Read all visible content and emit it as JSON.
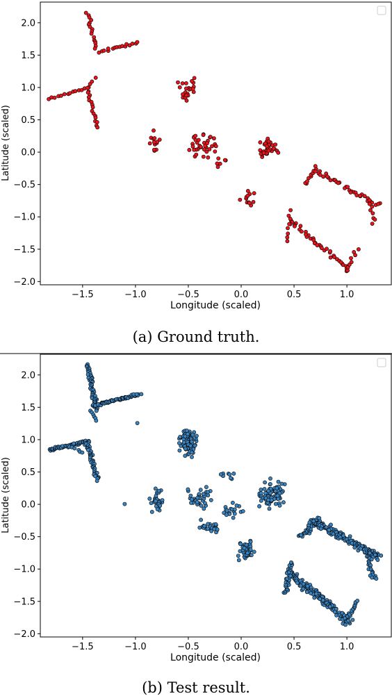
{
  "chart_data": [
    {
      "type": "scatter",
      "title": "",
      "xlabel": "Longitude (scaled)",
      "ylabel": "Latitude (scaled)",
      "xlim": [
        -1.9,
        1.42
      ],
      "ylim": [
        -2.05,
        2.32
      ],
      "xticks": [
        -1.5,
        -1.0,
        -0.5,
        0.0,
        0.5,
        1.0
      ],
      "xtick_labels": [
        "−1.5",
        "−1.0",
        "−0.5",
        "0.0",
        "0.5",
        "1.0"
      ],
      "yticks": [
        -2.0,
        -1.5,
        -1.0,
        -0.5,
        0.0,
        0.5,
        1.0,
        1.5,
        2.0
      ],
      "ytick_labels": [
        "−2.0",
        "−1.5",
        "−1.0",
        "−0.5",
        "0.0",
        "0.5",
        "1.0",
        "1.5",
        "2.0"
      ],
      "grid": false,
      "legend_placement": "upper-right",
      "point_color": "#e8141b",
      "point_edge": "#000000",
      "caption": "(a) Ground truth.",
      "clusters": [
        {
          "type": "line",
          "from": [
            -1.45,
            2.15
          ],
          "to": [
            -1.38,
            1.6
          ],
          "n": 16,
          "spread": 0.03
        },
        {
          "type": "line",
          "from": [
            -1.35,
            1.55
          ],
          "to": [
            -0.97,
            1.7
          ],
          "n": 16,
          "spread": 0.025
        },
        {
          "type": "line",
          "from": [
            -1.82,
            0.82
          ],
          "to": [
            -1.45,
            1.0
          ],
          "n": 14,
          "spread": 0.025
        },
        {
          "type": "line",
          "from": [
            -1.45,
            1.0
          ],
          "to": [
            -1.38,
            1.15
          ],
          "n": 4,
          "spread": 0.02
        },
        {
          "type": "line",
          "from": [
            -1.45,
            0.95
          ],
          "to": [
            -1.36,
            0.38
          ],
          "n": 16,
          "spread": 0.03
        },
        {
          "type": "blob",
          "center": [
            -0.52,
            0.98
          ],
          "r": [
            0.13,
            0.3
          ],
          "n": 22
        },
        {
          "type": "blob",
          "center": [
            -0.83,
            0.12
          ],
          "r": [
            0.09,
            0.25
          ],
          "n": 13
        },
        {
          "type": "blob",
          "center": [
            -0.38,
            0.1
          ],
          "r": [
            0.22,
            0.3
          ],
          "n": 36
        },
        {
          "type": "blob",
          "center": [
            -0.18,
            -0.12
          ],
          "r": [
            0.08,
            0.15
          ],
          "n": 6
        },
        {
          "type": "blob",
          "center": [
            0.06,
            -0.72
          ],
          "r": [
            0.1,
            0.18
          ],
          "n": 12
        },
        {
          "type": "blob",
          "center": [
            0.26,
            0.12
          ],
          "r": [
            0.18,
            0.28
          ],
          "n": 36
        },
        {
          "type": "line",
          "from": [
            0.6,
            -0.5
          ],
          "to": [
            0.7,
            -0.22
          ],
          "n": 10,
          "spread": 0.03
        },
        {
          "type": "line",
          "from": [
            0.7,
            -0.28
          ],
          "to": [
            1.3,
            -0.82
          ],
          "n": 34,
          "spread": 0.05
        },
        {
          "type": "line",
          "from": [
            1.22,
            -0.75
          ],
          "to": [
            1.25,
            -1.1
          ],
          "n": 8,
          "spread": 0.03
        },
        {
          "type": "line",
          "from": [
            0.45,
            -1.05
          ],
          "to": [
            1.02,
            -1.82
          ],
          "n": 38,
          "spread": 0.05
        },
        {
          "type": "line",
          "from": [
            0.43,
            -1.38
          ],
          "to": [
            0.47,
            -0.9
          ],
          "n": 8,
          "spread": 0.025
        },
        {
          "type": "line",
          "from": [
            1.0,
            -1.82
          ],
          "to": [
            1.1,
            -1.5
          ],
          "n": 8,
          "spread": 0.025
        }
      ]
    },
    {
      "type": "scatter",
      "title": "",
      "xlabel": "Longitude (scaled)",
      "ylabel": "Latitude (scaled)",
      "xlim": [
        -1.9,
        1.42
      ],
      "ylim": [
        -2.05,
        2.32
      ],
      "xticks": [
        -1.5,
        -1.0,
        -0.5,
        0.0,
        0.5,
        1.0
      ],
      "xtick_labels": [
        "−1.5",
        "−1.0",
        "−0.5",
        "0.0",
        "0.5",
        "1.0"
      ],
      "yticks": [
        -2.0,
        -1.5,
        -1.0,
        -0.5,
        0.0,
        0.5,
        1.0,
        1.5,
        2.0
      ],
      "ytick_labels": [
        "−2.0",
        "−1.5",
        "−1.0",
        "−0.5",
        "0.0",
        "0.5",
        "1.0",
        "1.5",
        "2.0"
      ],
      "grid": false,
      "legend_placement": "upper-right",
      "point_color": "#3b83be",
      "point_edge": "#000000",
      "caption": "(b) Test result.",
      "clusters": [
        {
          "type": "line",
          "from": [
            -1.45,
            2.15
          ],
          "to": [
            -1.37,
            1.45
          ],
          "n": 60,
          "spread": 0.03
        },
        {
          "type": "line",
          "from": [
            -1.4,
            1.52
          ],
          "to": [
            -0.97,
            1.7
          ],
          "n": 70,
          "spread": 0.03
        },
        {
          "type": "line",
          "from": [
            -1.42,
            1.45
          ],
          "to": [
            -1.37,
            1.3
          ],
          "n": 6,
          "spread": 0.02
        },
        {
          "type": "line",
          "from": [
            -1.82,
            0.84
          ],
          "to": [
            -1.44,
            0.98
          ],
          "n": 60,
          "spread": 0.025
        },
        {
          "type": "line",
          "from": [
            -1.46,
            0.96
          ],
          "to": [
            -1.36,
            0.38
          ],
          "n": 50,
          "spread": 0.03
        },
        {
          "type": "line",
          "from": [
            -1.62,
            0.9
          ],
          "to": [
            -1.5,
            0.8
          ],
          "n": 6,
          "spread": 0.02
        },
        {
          "type": "blob",
          "center": [
            -0.5,
            0.95
          ],
          "r": [
            0.12,
            0.3
          ],
          "n": 90
        },
        {
          "type": "blob",
          "center": [
            -0.8,
            0.05
          ],
          "r": [
            0.1,
            0.25
          ],
          "n": 30
        },
        {
          "type": "blob",
          "center": [
            -0.4,
            0.1
          ],
          "r": [
            0.2,
            0.25
          ],
          "n": 35
        },
        {
          "type": "blob",
          "center": [
            -0.3,
            -0.35
          ],
          "r": [
            0.16,
            0.12
          ],
          "n": 24
        },
        {
          "type": "blob",
          "center": [
            -0.1,
            -0.1
          ],
          "r": [
            0.14,
            0.15
          ],
          "n": 18
        },
        {
          "type": "blob",
          "center": [
            0.05,
            -0.72
          ],
          "r": [
            0.1,
            0.2
          ],
          "n": 40
        },
        {
          "type": "blob",
          "center": [
            0.3,
            0.15
          ],
          "r": [
            0.16,
            0.26
          ],
          "n": 90
        },
        {
          "type": "blob",
          "center": [
            -0.15,
            0.45
          ],
          "r": [
            0.12,
            0.1
          ],
          "n": 8
        },
        {
          "type": "line",
          "from": [
            0.58,
            -0.5
          ],
          "to": [
            0.72,
            -0.22
          ],
          "n": 40,
          "spread": 0.05
        },
        {
          "type": "line",
          "from": [
            0.68,
            -0.25
          ],
          "to": [
            1.3,
            -0.82
          ],
          "n": 140,
          "spread": 0.07
        },
        {
          "type": "line",
          "from": [
            1.2,
            -0.7
          ],
          "to": [
            1.25,
            -1.15
          ],
          "n": 30,
          "spread": 0.04
        },
        {
          "type": "line",
          "from": [
            0.45,
            -1.05
          ],
          "to": [
            1.02,
            -1.82
          ],
          "n": 140,
          "spread": 0.07
        },
        {
          "type": "line",
          "from": [
            0.42,
            -1.38
          ],
          "to": [
            0.47,
            -0.9
          ],
          "n": 30,
          "spread": 0.03
        },
        {
          "type": "line",
          "from": [
            1.0,
            -1.8
          ],
          "to": [
            1.1,
            -1.5
          ],
          "n": 20,
          "spread": 0.03
        },
        {
          "type": "blob",
          "center": [
            -1.1,
            0.0
          ],
          "r": [
            0.02,
            0.02
          ],
          "n": 1
        },
        {
          "type": "blob",
          "center": [
            -0.98,
            1.25
          ],
          "r": [
            0.02,
            0.02
          ],
          "n": 1
        }
      ]
    }
  ]
}
